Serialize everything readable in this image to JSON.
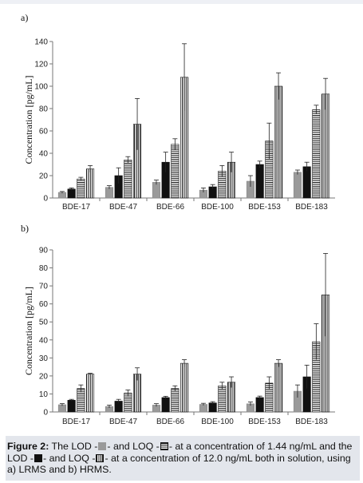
{
  "colors": {
    "lod_low": "#9a9a9a",
    "loq_low": "#ffffff",
    "lod_high": "#111111",
    "loq_high": "#ffffff",
    "axis": "#777777",
    "caption_bg": "#e3e6ec"
  },
  "chart_data": [
    {
      "type": "bar",
      "panel_label": "a)",
      "ylabel": "Concentration [pg/mL]",
      "ylim": [
        0,
        140
      ],
      "yticks": [
        0,
        20,
        40,
        60,
        80,
        100,
        120,
        140
      ],
      "categories": [
        "BDE-17",
        "BDE-47",
        "BDE-66",
        "BDE-100",
        "BDE-153",
        "BDE-183"
      ],
      "series": [
        {
          "pattern": "grey",
          "values": [
            5,
            9.5,
            14,
            7,
            15,
            23
          ],
          "errors": [
            0.8,
            1.5,
            2,
            2,
            5,
            2
          ]
        },
        {
          "pattern": "black",
          "values": [
            8,
            20,
            32,
            10,
            30,
            28
          ],
          "errors": [
            1,
            7,
            9,
            2,
            3,
            4
          ]
        },
        {
          "pattern": "horizontal",
          "values": [
            17,
            34,
            48,
            24,
            51,
            79
          ],
          "errors": [
            1.5,
            3,
            5,
            5,
            16,
            4
          ]
        },
        {
          "pattern": "vertical",
          "values": [
            26,
            66,
            108,
            32,
            100,
            93
          ],
          "errors": [
            3,
            23,
            30,
            9,
            12,
            14
          ]
        }
      ]
    },
    {
      "type": "bar",
      "panel_label": "b)",
      "ylabel": "Concentration [pg/mL]",
      "ylim": [
        0,
        90
      ],
      "yticks": [
        0,
        10,
        20,
        30,
        40,
        50,
        60,
        70,
        80,
        90
      ],
      "categories": [
        "BDE-17",
        "BDE-47",
        "BDE-66",
        "BDE-100",
        "BDE-153",
        "BDE-183"
      ],
      "series": [
        {
          "pattern": "grey",
          "values": [
            4,
            3,
            3.8,
            4.2,
            4.5,
            11.5
          ],
          "errors": [
            0.6,
            0.8,
            0.8,
            0.6,
            1,
            3.5
          ]
        },
        {
          "pattern": "black",
          "values": [
            6.5,
            6,
            8,
            5,
            8,
            19.5
          ],
          "errors": [
            0.5,
            1,
            0.7,
            0.7,
            0.8,
            6.5
          ]
        },
        {
          "pattern": "horizontal",
          "values": [
            13,
            10.5,
            13,
            14.5,
            16,
            39
          ],
          "errors": [
            2,
            1.7,
            1.5,
            2,
            3.5,
            10
          ]
        },
        {
          "pattern": "vertical",
          "values": [
            21,
            21,
            27,
            16.5,
            27,
            65
          ],
          "errors": [
            0.5,
            3.5,
            2,
            3,
            2,
            23
          ]
        }
      ]
    }
  ],
  "caption": {
    "figure_label": "Figure 2:",
    "t1": " The LOD -",
    "t2": "- and LOQ -",
    "t3": "- at a concentration of 1.44 ng/mL and the LOD -",
    "t4": "- and LOQ -",
    "t5": "- at a concentration of 12.0 ng/mL both in solution, using a) LRMS and b) HRMS."
  }
}
